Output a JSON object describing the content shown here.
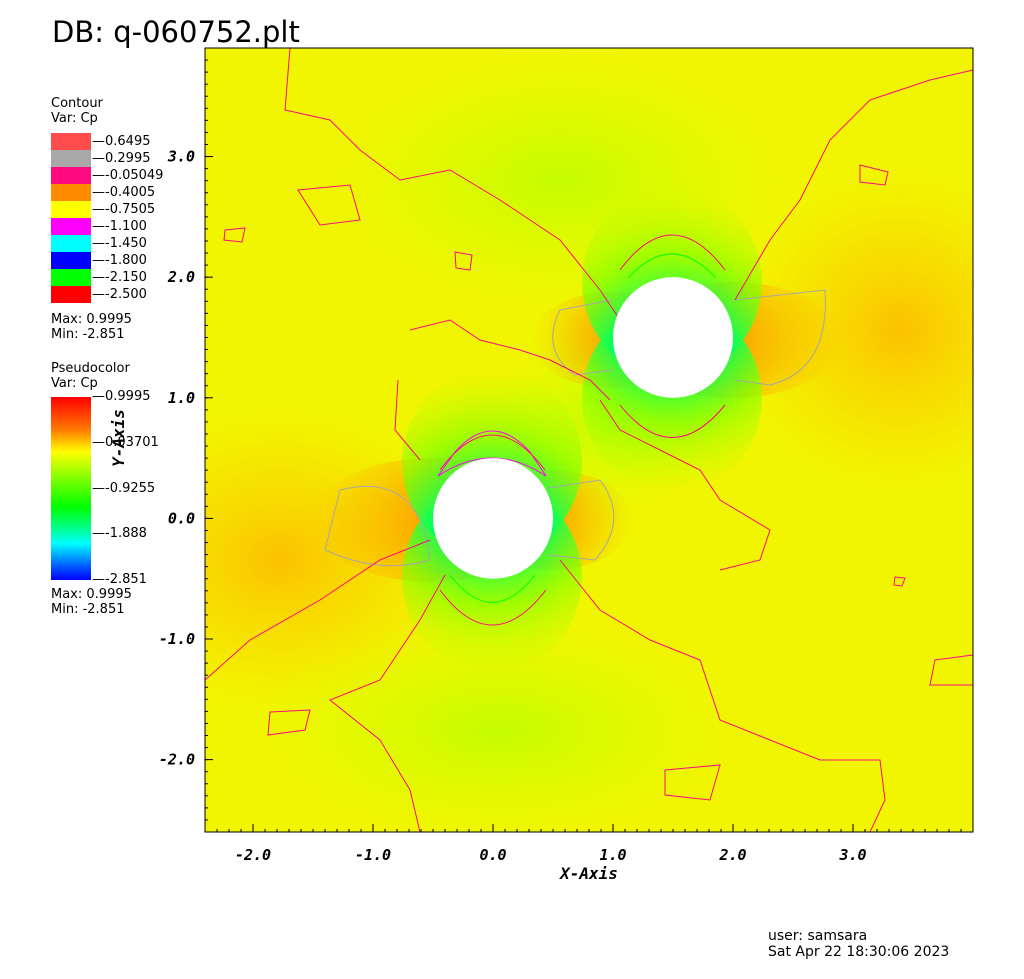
{
  "title": "DB: q-060752.plt",
  "contour_legend": {
    "heading": "Contour",
    "var": "Var: Cp",
    "levels": [
      {
        "label": "0.6495",
        "color": "#ff4d4d"
      },
      {
        "label": "0.2995",
        "color": "#a8a8a8"
      },
      {
        "label": "-0.05049",
        "color": "#ff0a80"
      },
      {
        "label": "-0.4005",
        "color": "#ff8c00"
      },
      {
        "label": "-0.7505",
        "color": "#ffff00"
      },
      {
        "label": "-1.100",
        "color": "#ff00ff"
      },
      {
        "label": "-1.450",
        "color": "#00ffff"
      },
      {
        "label": "-1.800",
        "color": "#0000ff"
      },
      {
        "label": "-2.150",
        "color": "#00ff00"
      },
      {
        "label": "-2.500",
        "color": "#ff0000"
      }
    ],
    "max": "Max:  0.9995",
    "min": "Min: -2.851"
  },
  "pseudocolor_legend": {
    "heading": "Pseudocolor",
    "var": "Var: Cp",
    "ticks": [
      "0.9995",
      "0.03701",
      "-0.9255",
      "-1.888",
      "-2.851"
    ],
    "max": "Max:  0.9995",
    "min": "Min: -2.851"
  },
  "chart_data": {
    "type": "heatmap",
    "variable": "Cp",
    "xlabel": "X-Axis",
    "ylabel": "Y-Axis",
    "xlim": [
      -2.4,
      4.0
    ],
    "ylim": [
      -2.6,
      3.9
    ],
    "x_ticks": [
      "-2.0",
      "-1.0",
      "0.0",
      "1.0",
      "2.0",
      "3.0"
    ],
    "y_ticks": [
      "3.0",
      "2.0",
      "1.0",
      "0.0",
      "-1.0",
      "-2.0"
    ],
    "cylinders": [
      {
        "center_x": 0.0,
        "center_y": 0.0,
        "radius": 0.5
      },
      {
        "center_x": 1.5,
        "center_y": 1.5,
        "radius": 0.5
      }
    ],
    "value_range": [
      -2.851,
      0.9995
    ]
  },
  "footer": {
    "user": "user: samsara",
    "date": "Sat Apr 22 18:30:06 2023"
  }
}
